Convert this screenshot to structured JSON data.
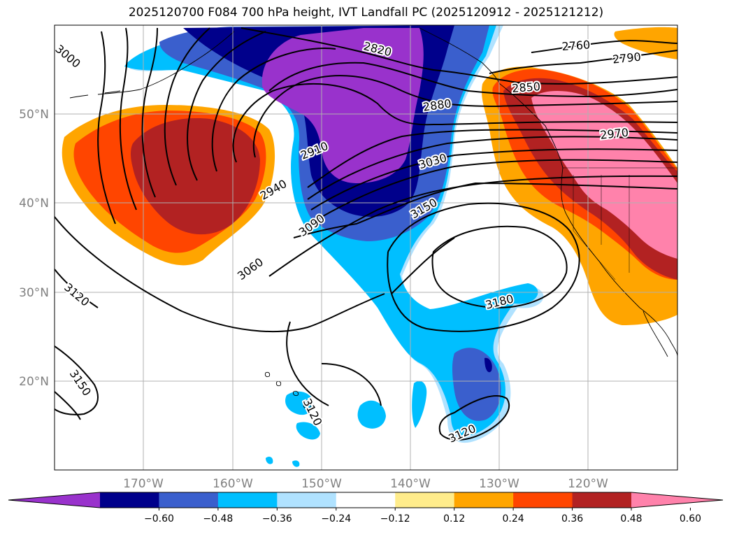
{
  "title": "2025120700 F084 700 hPa height, IVT Landfall PC (2025120912 - 2025121212)",
  "map": {
    "lon_range": [
      180,
      110
    ],
    "lat_range": [
      10,
      60
    ],
    "lat_ticks": [
      "20°N",
      "30°N",
      "40°N",
      "50°N"
    ],
    "lon_ticks": [
      "170°W",
      "160°W",
      "150°W",
      "140°W",
      "130°W",
      "120°W"
    ],
    "grid": true
  },
  "contour_labels": [
    {
      "text": "3000",
      "lon": 178.5,
      "lat": 56.5,
      "rot": 40
    },
    {
      "text": "2820",
      "lon": 143.7,
      "lat": 57.3,
      "rot": 14
    },
    {
      "text": "2760",
      "lon": 121.4,
      "lat": 57.7,
      "rot": -4
    },
    {
      "text": "2790",
      "lon": 115.7,
      "lat": 56.3,
      "rot": -6
    },
    {
      "text": "2850",
      "lon": 127.0,
      "lat": 53.0,
      "rot": -4
    },
    {
      "text": "2880",
      "lon": 137.0,
      "lat": 51.0,
      "rot": -8
    },
    {
      "text": "2970",
      "lon": 117.1,
      "lat": 47.8,
      "rot": -6
    },
    {
      "text": "2910",
      "lon": 150.8,
      "lat": 45.9,
      "rot": -22
    },
    {
      "text": "3030",
      "lon": 137.5,
      "lat": 44.7,
      "rot": -16
    },
    {
      "text": "2940",
      "lon": 155.4,
      "lat": 41.5,
      "rot": -30
    },
    {
      "text": "3150",
      "lon": 138.5,
      "lat": 39.4,
      "rot": -30
    },
    {
      "text": "3090",
      "lon": 151.1,
      "lat": 37.5,
      "rot": -36
    },
    {
      "text": "3060",
      "lon": 158.0,
      "lat": 32.6,
      "rot": -36
    },
    {
      "text": "3180",
      "lon": 130.0,
      "lat": 28.9,
      "rot": -14
    },
    {
      "text": "3120",
      "lon": 177.5,
      "lat": 29.7,
      "rot": 40
    },
    {
      "text": "3150",
      "lon": 177.1,
      "lat": 19.8,
      "rot": 56
    },
    {
      "text": "3120",
      "lon": 151.0,
      "lat": 16.5,
      "rot": 64
    },
    {
      "text": "3120",
      "lon": 134.2,
      "lat": 14.1,
      "rot": -24
    }
  ],
  "colorbar": {
    "colors": [
      "#9932CC",
      "#00008B",
      "#3A5FCD",
      "#00BFFF",
      "#B0E2FF",
      "#FFFFFF",
      "#FFEC8B",
      "#FFA500",
      "#FF4500",
      "#B22222",
      "#FF82AB"
    ],
    "labels": [
      "−0.60",
      "−0.48",
      "−0.36",
      "−0.24",
      "−0.12",
      "0.12",
      "0.24",
      "0.36",
      "0.48",
      "0.60"
    ]
  }
}
